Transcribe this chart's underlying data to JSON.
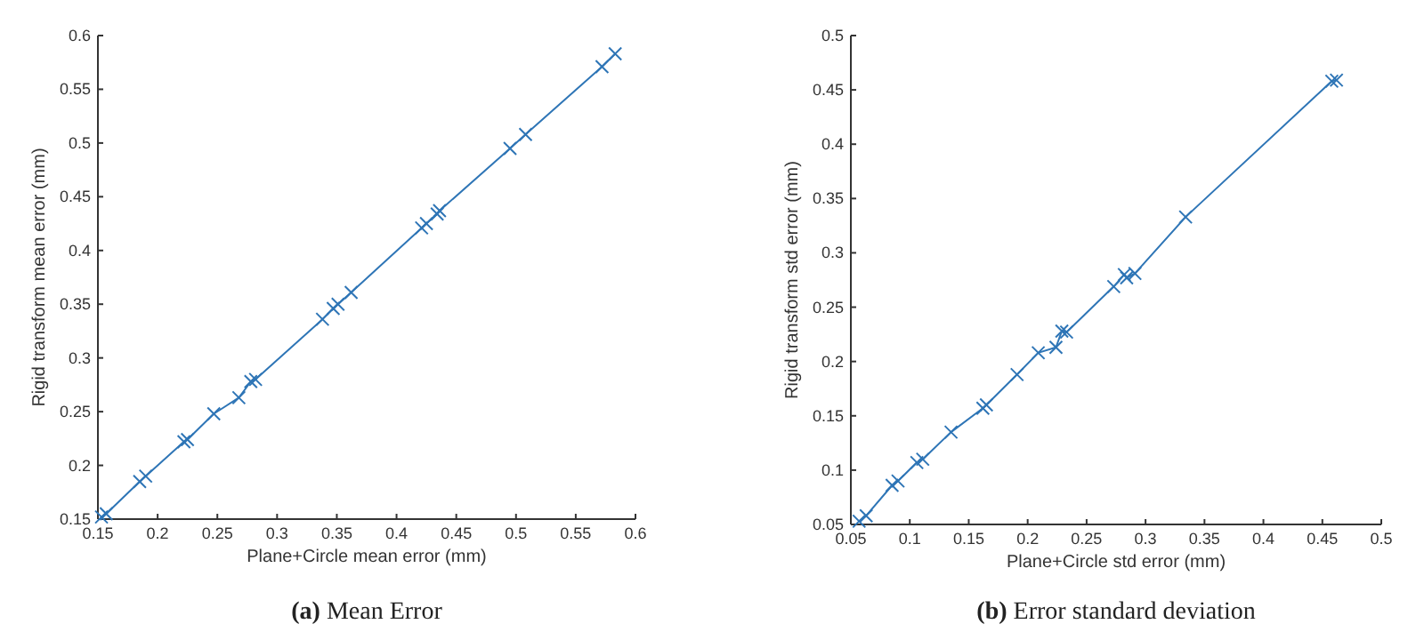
{
  "chart_data": [
    {
      "type": "line",
      "title": "(a) Mean Error",
      "xlabel": "Plane+Circle mean error (mm)",
      "ylabel": "Rigid transform mean error (mm)",
      "xlim": [
        0.15,
        0.6
      ],
      "ylim": [
        0.15,
        0.6
      ],
      "xticks": [
        0.15,
        0.2,
        0.25,
        0.3,
        0.35,
        0.4,
        0.45,
        0.5,
        0.55,
        0.6
      ],
      "yticks": [
        0.15,
        0.2,
        0.25,
        0.3,
        0.35,
        0.4,
        0.45,
        0.5,
        0.55,
        0.6
      ],
      "marker": "cross",
      "line_style": "solid",
      "series": [
        {
          "color": "#2e75b6",
          "x": [
            0.153,
            0.157,
            0.185,
            0.19,
            0.222,
            0.225,
            0.247,
            0.268,
            0.278,
            0.282,
            0.338,
            0.347,
            0.351,
            0.362,
            0.421,
            0.425,
            0.434,
            0.436,
            0.495,
            0.508,
            0.572,
            0.583
          ],
          "values": [
            0.152,
            0.155,
            0.185,
            0.19,
            0.222,
            0.224,
            0.248,
            0.263,
            0.278,
            0.28,
            0.336,
            0.346,
            0.35,
            0.361,
            0.421,
            0.425,
            0.434,
            0.437,
            0.495,
            0.508,
            0.571,
            0.583
          ]
        }
      ]
    },
    {
      "type": "line",
      "title": "(b) Error standard deviation",
      "xlabel": "Plane+Circle std error (mm)",
      "ylabel": "Rigid transform std error (mm)",
      "xlim": [
        0.05,
        0.5
      ],
      "ylim": [
        0.05,
        0.5
      ],
      "xticks": [
        0.05,
        0.1,
        0.15,
        0.2,
        0.25,
        0.3,
        0.35,
        0.4,
        0.45,
        0.5
      ],
      "yticks": [
        0.05,
        0.1,
        0.15,
        0.2,
        0.25,
        0.3,
        0.35,
        0.4,
        0.45,
        0.5
      ],
      "marker": "cross",
      "line_style": "solid",
      "series": [
        {
          "color": "#2e75b6",
          "x": [
            0.057,
            0.063,
            0.085,
            0.09,
            0.106,
            0.111,
            0.135,
            0.162,
            0.165,
            0.191,
            0.209,
            0.224,
            0.229,
            0.233,
            0.273,
            0.282,
            0.284,
            0.291,
            0.334,
            0.458,
            0.462
          ],
          "values": [
            0.053,
            0.058,
            0.086,
            0.09,
            0.107,
            0.11,
            0.135,
            0.157,
            0.16,
            0.188,
            0.208,
            0.213,
            0.228,
            0.227,
            0.269,
            0.28,
            0.277,
            0.281,
            0.333,
            0.458,
            0.459
          ]
        }
      ]
    }
  ]
}
